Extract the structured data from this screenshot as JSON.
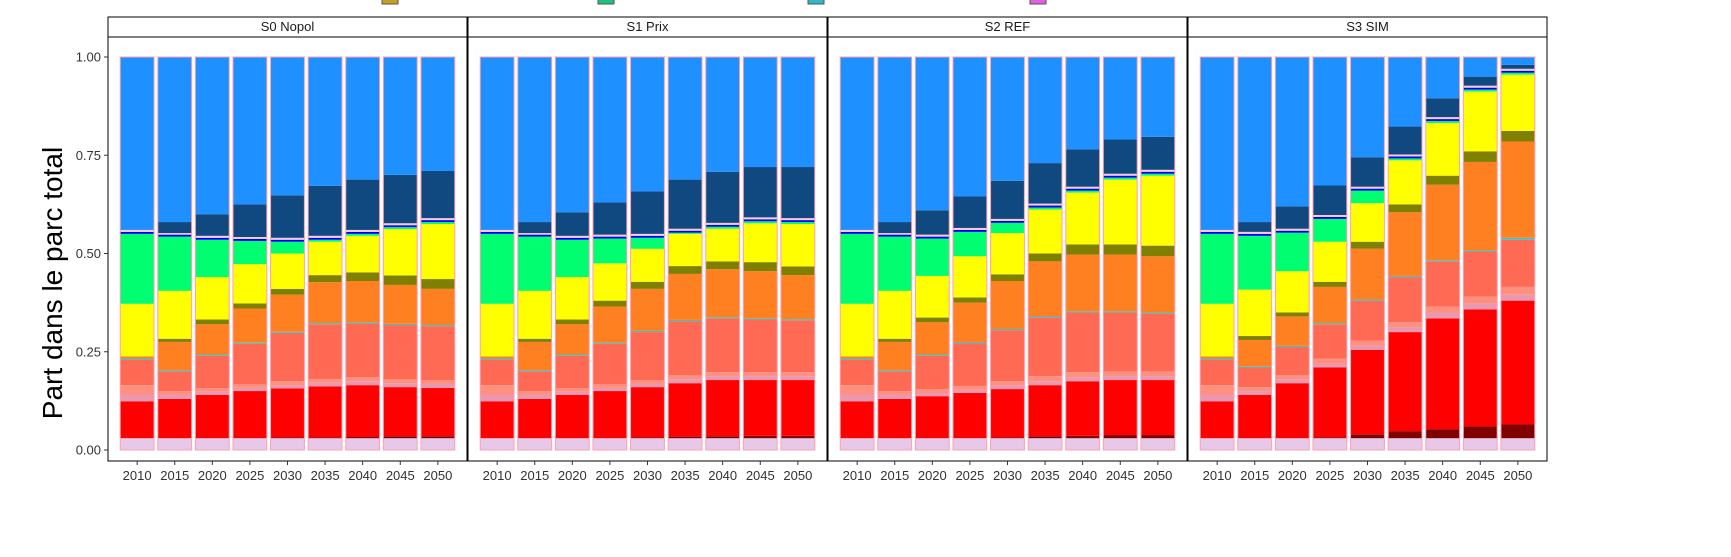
{
  "chart_data": {
    "type": "bar",
    "stacked": true,
    "facets": [
      "S0 Nopol",
      "S1 Prix",
      "S2 REF",
      "S3 SIM"
    ],
    "categories": [
      "2010",
      "2015",
      "2020",
      "2025",
      "2030",
      "2035",
      "2040",
      "2045",
      "2050"
    ],
    "ylabel": "Part dans le parc total",
    "xlabel": "",
    "ylim": [
      0,
      1
    ],
    "y_ticks": [
      "0.00",
      "0.25",
      "0.50",
      "0.75",
      "1.00"
    ],
    "grid": false,
    "stack_colors": [
      "#e8c8e8",
      "#800000",
      "#ff0000",
      "#e898b0",
      "#ff9080",
      "#ff6a55",
      "#40c0c0",
      "#ff8020",
      "#808000",
      "#ffff00",
      "#00ff70",
      "#0000ff",
      "#ffc8d8",
      "#104880",
      "#1e90ff"
    ],
    "panels": [
      {
        "facet": "S0 Nopol",
        "tops": [
          [
            0.03,
            0.03,
            0.124,
            0.14,
            0.165,
            0.23,
            0.233,
            0.238,
            0.238,
            0.372,
            0.55,
            0.555,
            0.56,
            0.56,
            1.0
          ],
          [
            0.03,
            0.03,
            0.13,
            0.14,
            0.15,
            0.2,
            0.203,
            0.275,
            0.283,
            0.405,
            0.543,
            0.548,
            0.552,
            0.58,
            1.0
          ],
          [
            0.03,
            0.03,
            0.14,
            0.148,
            0.157,
            0.24,
            0.243,
            0.32,
            0.332,
            0.44,
            0.535,
            0.54,
            0.545,
            0.6,
            1.0
          ],
          [
            0.03,
            0.03,
            0.15,
            0.158,
            0.167,
            0.27,
            0.273,
            0.36,
            0.373,
            0.473,
            0.532,
            0.537,
            0.542,
            0.625,
            1.0
          ],
          [
            0.03,
            0.032,
            0.157,
            0.165,
            0.175,
            0.298,
            0.301,
            0.395,
            0.41,
            0.5,
            0.53,
            0.535,
            0.54,
            0.648,
            1.0
          ],
          [
            0.03,
            0.032,
            0.162,
            0.171,
            0.18,
            0.32,
            0.323,
            0.427,
            0.445,
            0.53,
            0.535,
            0.54,
            0.545,
            0.672,
            1.0
          ],
          [
            0.03,
            0.033,
            0.165,
            0.175,
            0.185,
            0.322,
            0.325,
            0.43,
            0.452,
            0.545,
            0.55,
            0.555,
            0.56,
            0.688,
            1.0
          ],
          [
            0.03,
            0.035,
            0.16,
            0.17,
            0.18,
            0.318,
            0.321,
            0.42,
            0.444,
            0.562,
            0.567,
            0.572,
            0.577,
            0.7,
            1.0
          ],
          [
            0.03,
            0.035,
            0.158,
            0.168,
            0.178,
            0.315,
            0.318,
            0.41,
            0.435,
            0.575,
            0.58,
            0.585,
            0.59,
            0.71,
            1.0
          ]
        ]
      },
      {
        "facet": "S1 Prix",
        "tops": [
          [
            0.03,
            0.03,
            0.124,
            0.14,
            0.165,
            0.23,
            0.233,
            0.238,
            0.238,
            0.372,
            0.55,
            0.555,
            0.56,
            0.56,
            1.0
          ],
          [
            0.03,
            0.03,
            0.13,
            0.14,
            0.15,
            0.2,
            0.203,
            0.275,
            0.283,
            0.405,
            0.543,
            0.548,
            0.552,
            0.58,
            1.0
          ],
          [
            0.03,
            0.03,
            0.14,
            0.148,
            0.157,
            0.24,
            0.243,
            0.32,
            0.332,
            0.44,
            0.535,
            0.54,
            0.545,
            0.605,
            1.0
          ],
          [
            0.03,
            0.03,
            0.15,
            0.158,
            0.167,
            0.27,
            0.273,
            0.365,
            0.38,
            0.475,
            0.538,
            0.543,
            0.548,
            0.63,
            1.0
          ],
          [
            0.03,
            0.032,
            0.16,
            0.168,
            0.178,
            0.3,
            0.303,
            0.41,
            0.428,
            0.512,
            0.54,
            0.545,
            0.55,
            0.658,
            1.0
          ],
          [
            0.03,
            0.034,
            0.17,
            0.18,
            0.19,
            0.328,
            0.331,
            0.448,
            0.468,
            0.55,
            0.553,
            0.558,
            0.563,
            0.688,
            1.0
          ],
          [
            0.03,
            0.035,
            0.178,
            0.188,
            0.198,
            0.335,
            0.338,
            0.46,
            0.48,
            0.563,
            0.568,
            0.573,
            0.578,
            0.708,
            1.0
          ],
          [
            0.03,
            0.036,
            0.178,
            0.188,
            0.198,
            0.332,
            0.335,
            0.455,
            0.478,
            0.577,
            0.582,
            0.587,
            0.592,
            0.72,
            1.0
          ],
          [
            0.03,
            0.036,
            0.178,
            0.188,
            0.198,
            0.33,
            0.333,
            0.445,
            0.467,
            0.575,
            0.58,
            0.585,
            0.59,
            0.72,
            1.0
          ]
        ]
      },
      {
        "facet": "S2 REF",
        "tops": [
          [
            0.03,
            0.03,
            0.124,
            0.14,
            0.165,
            0.23,
            0.233,
            0.238,
            0.238,
            0.372,
            0.55,
            0.555,
            0.56,
            0.56,
            1.0
          ],
          [
            0.03,
            0.03,
            0.13,
            0.14,
            0.15,
            0.2,
            0.203,
            0.275,
            0.283,
            0.405,
            0.543,
            0.548,
            0.552,
            0.58,
            1.0
          ],
          [
            0.03,
            0.03,
            0.137,
            0.145,
            0.155,
            0.24,
            0.243,
            0.325,
            0.337,
            0.443,
            0.538,
            0.543,
            0.548,
            0.61,
            1.0
          ],
          [
            0.03,
            0.03,
            0.145,
            0.153,
            0.163,
            0.272,
            0.275,
            0.375,
            0.388,
            0.493,
            0.555,
            0.56,
            0.565,
            0.645,
            1.0
          ],
          [
            0.03,
            0.032,
            0.155,
            0.165,
            0.175,
            0.305,
            0.308,
            0.43,
            0.447,
            0.552,
            0.578,
            0.583,
            0.588,
            0.685,
            1.0
          ],
          [
            0.03,
            0.035,
            0.165,
            0.175,
            0.188,
            0.338,
            0.341,
            0.48,
            0.5,
            0.612,
            0.617,
            0.622,
            0.627,
            0.73,
            1.0
          ],
          [
            0.03,
            0.036,
            0.175,
            0.185,
            0.198,
            0.35,
            0.353,
            0.497,
            0.523,
            0.655,
            0.66,
            0.665,
            0.67,
            0.765,
            1.0
          ],
          [
            0.03,
            0.038,
            0.178,
            0.188,
            0.2,
            0.35,
            0.353,
            0.497,
            0.523,
            0.688,
            0.693,
            0.698,
            0.703,
            0.79,
            1.0
          ],
          [
            0.03,
            0.038,
            0.178,
            0.188,
            0.2,
            0.347,
            0.35,
            0.493,
            0.52,
            0.698,
            0.703,
            0.708,
            0.713,
            0.797,
            1.0
          ]
        ]
      },
      {
        "facet": "S3 SIM",
        "tops": [
          [
            0.03,
            0.03,
            0.124,
            0.14,
            0.165,
            0.23,
            0.233,
            0.238,
            0.238,
            0.372,
            0.55,
            0.555,
            0.56,
            0.56,
            1.0
          ],
          [
            0.03,
            0.03,
            0.14,
            0.15,
            0.16,
            0.21,
            0.213,
            0.28,
            0.29,
            0.408,
            0.545,
            0.55,
            0.555,
            0.58,
            1.0
          ],
          [
            0.03,
            0.03,
            0.17,
            0.18,
            0.19,
            0.262,
            0.265,
            0.34,
            0.35,
            0.455,
            0.553,
            0.558,
            0.563,
            0.62,
            1.0
          ],
          [
            0.03,
            0.032,
            0.21,
            0.22,
            0.232,
            0.32,
            0.323,
            0.415,
            0.428,
            0.53,
            0.588,
            0.593,
            0.598,
            0.673,
            1.0
          ],
          [
            0.03,
            0.04,
            0.255,
            0.265,
            0.278,
            0.38,
            0.383,
            0.512,
            0.53,
            0.628,
            0.66,
            0.665,
            0.67,
            0.745,
            1.0
          ],
          [
            0.03,
            0.048,
            0.3,
            0.312,
            0.325,
            0.44,
            0.443,
            0.605,
            0.625,
            0.737,
            0.742,
            0.747,
            0.752,
            0.823,
            1.0
          ],
          [
            0.03,
            0.053,
            0.335,
            0.35,
            0.365,
            0.48,
            0.483,
            0.675,
            0.698,
            0.832,
            0.837,
            0.842,
            0.847,
            0.895,
            1.0
          ],
          [
            0.03,
            0.06,
            0.358,
            0.373,
            0.39,
            0.505,
            0.508,
            0.733,
            0.76,
            0.912,
            0.917,
            0.922,
            0.927,
            0.95,
            1.0
          ],
          [
            0.03,
            0.065,
            0.38,
            0.395,
            0.415,
            0.535,
            0.54,
            0.785,
            0.812,
            0.955,
            0.96,
            0.965,
            0.97,
            0.98,
            1.0
          ]
        ]
      }
    ]
  }
}
